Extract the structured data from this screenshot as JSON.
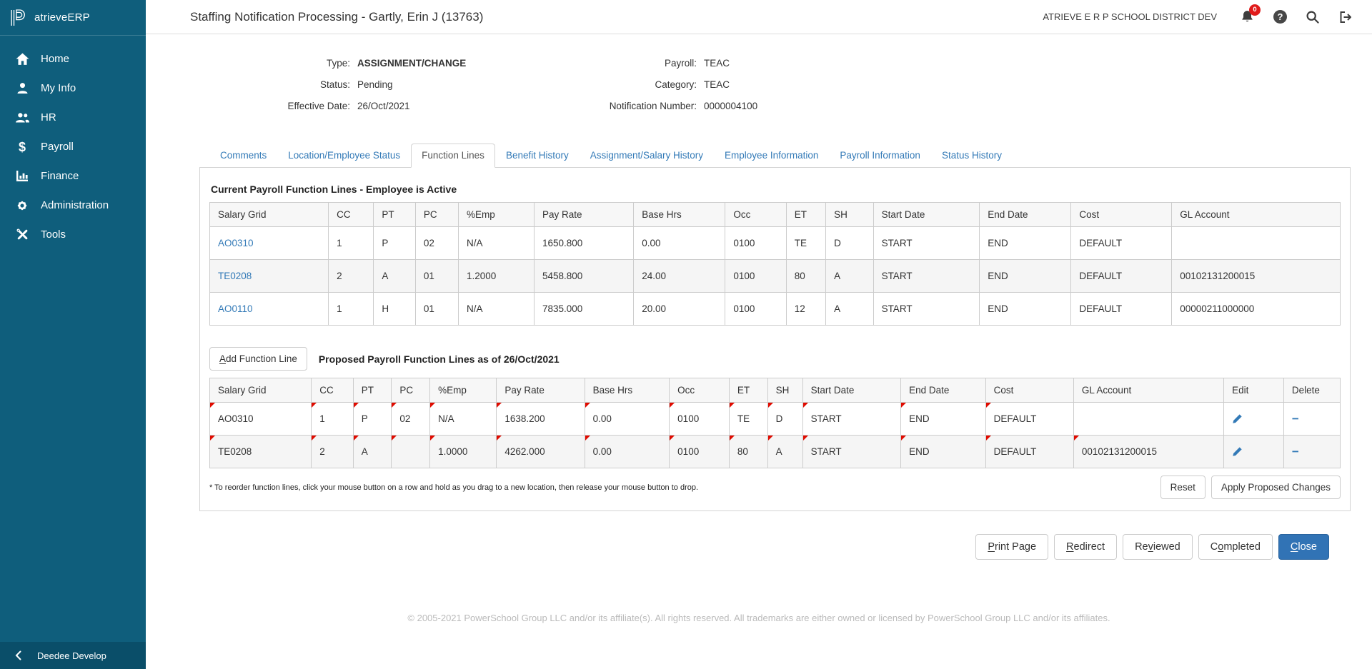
{
  "app": {
    "brand": "atrieveERP",
    "district": "ATRIEVE E R P SCHOOL DISTRICT DEV",
    "notification_count": "0"
  },
  "sidebar": {
    "items": [
      {
        "label": "Home",
        "icon": "home-icon"
      },
      {
        "label": "My Info",
        "icon": "person-icon"
      },
      {
        "label": "HR",
        "icon": "people-icon"
      },
      {
        "label": "Payroll",
        "icon": "dollar-icon"
      },
      {
        "label": "Finance",
        "icon": "bar-chart-icon"
      },
      {
        "label": "Administration",
        "icon": "gear-icon"
      },
      {
        "label": "Tools",
        "icon": "tools-icon"
      }
    ],
    "footer_label": "Deedee Develop"
  },
  "header": {
    "title": "Staffing Notification Processing - Gartly, Erin J (13763)"
  },
  "info": {
    "type_label": "Type:",
    "type_value": "ASSIGNMENT/CHANGE",
    "status_label": "Status:",
    "status_value": "Pending",
    "effective_date_label": "Effective Date:",
    "effective_date_value": "26/Oct/2021",
    "payroll_label": "Payroll:",
    "payroll_value": "TEAC",
    "category_label": "Category:",
    "category_value": "TEAC",
    "notification_number_label": "Notification Number:",
    "notification_number_value": "0000004100"
  },
  "tabs": [
    {
      "label": "Comments",
      "active": false
    },
    {
      "label": "Location/Employee Status",
      "active": false
    },
    {
      "label": "Function Lines",
      "active": true
    },
    {
      "label": "Benefit History",
      "active": false
    },
    {
      "label": "Assignment/Salary History",
      "active": false
    },
    {
      "label": "Employee Information",
      "active": false
    },
    {
      "label": "Payroll Information",
      "active": false
    },
    {
      "label": "Status History",
      "active": false
    }
  ],
  "current_table": {
    "title": "Current Payroll Function Lines - Employee is Active",
    "columns": [
      "Salary Grid",
      "CC",
      "PT",
      "PC",
      "%Emp",
      "Pay Rate",
      "Base Hrs",
      "Occ",
      "ET",
      "SH",
      "Start Date",
      "End Date",
      "Cost",
      "GL Account"
    ],
    "rows": [
      [
        "AO0310",
        "1",
        "P",
        "02",
        "N/A",
        "1650.800",
        "0.00",
        "0100",
        "TE",
        "D",
        "START",
        "END",
        "DEFAULT",
        ""
      ],
      [
        "TE0208",
        "2",
        "A",
        "01",
        "1.2000",
        "5458.800",
        "24.00",
        "0100",
        "80",
        "A",
        "START",
        "END",
        "DEFAULT",
        "00102131200015"
      ],
      [
        "AO0110",
        "1",
        "H",
        "01",
        "N/A",
        "7835.000",
        "20.00",
        "0100",
        "12",
        "A",
        "START",
        "END",
        "DEFAULT",
        "00000211000000"
      ]
    ]
  },
  "proposed_table": {
    "add_button_label": "Add Function Line",
    "add_button_key": "A",
    "title": "Proposed Payroll Function Lines as of 26/Oct/2021",
    "columns": [
      "Salary Grid",
      "CC",
      "PT",
      "PC",
      "%Emp",
      "Pay Rate",
      "Base Hrs",
      "Occ",
      "ET",
      "SH",
      "Start Date",
      "End Date",
      "Cost",
      "GL Account",
      "Edit",
      "Delete"
    ],
    "rows": [
      {
        "cells": [
          "AO0310",
          "1",
          "P",
          "02",
          "N/A",
          "1638.200",
          "0.00",
          "0100",
          "TE",
          "D",
          "START",
          "END",
          "DEFAULT",
          ""
        ],
        "changed": [
          true,
          true,
          true,
          true,
          true,
          true,
          true,
          true,
          true,
          true,
          true,
          true,
          true,
          false
        ]
      },
      {
        "cells": [
          "TE0208",
          "2",
          "A",
          "",
          "1.0000",
          "4262.000",
          "0.00",
          "0100",
          "80",
          "A",
          "START",
          "END",
          "DEFAULT",
          "00102131200015"
        ],
        "changed": [
          true,
          true,
          true,
          true,
          true,
          true,
          true,
          true,
          true,
          true,
          true,
          true,
          true,
          true
        ]
      }
    ],
    "footnote": "* To reorder function lines, click your mouse button on a row and hold as you drag to a new location, then release your mouse button to drop.",
    "reset_label": "Reset",
    "apply_label": "Apply Proposed Changes"
  },
  "actions": [
    {
      "label": "Print Page",
      "key": "P",
      "primary": false
    },
    {
      "label": "Redirect",
      "key": "R",
      "primary": false
    },
    {
      "label": "Reviewed",
      "key": "v",
      "primary": false
    },
    {
      "label": "Completed",
      "key": "o",
      "primary": false
    },
    {
      "label": "Close",
      "key": "C",
      "primary": true
    }
  ],
  "footer": "© 2005-2021 PowerSchool Group LLC and/or its affiliate(s). All rights reserved. All trademarks are either owned or licensed by PowerSchool Group LLC and/or its affiliates.",
  "colors": {
    "brand_teal": "#0f5e7c",
    "sidebar_footer": "#0a4e69",
    "link_blue": "#337ab7",
    "primary_button": "#3173b5",
    "marker_red": "#e00b00",
    "badge_red": "#e01b1b"
  }
}
